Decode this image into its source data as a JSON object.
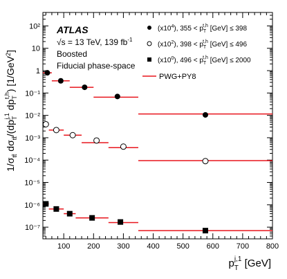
{
  "experiment": "ATLAS",
  "annotation": {
    "energy": "√s = 13 TeV, 139 fb",
    "energy_sup": "-1",
    "regime": "Boosted",
    "phase_space": "Fiducial phase-space"
  },
  "legend": {
    "s1_prefix": "(x10",
    "s1_exp": "4",
    "s1_range_a": "), 355 < p",
    "s1_range_b": " [GeV] ≤ 398",
    "s2_prefix": "(x10",
    "s2_exp": "2",
    "s2_range_a": "), 398 < p",
    "s2_range_b": " [GeV] ≤ 496",
    "s3_prefix": "(x10",
    "s3_exp": "0",
    "s3_range_a": "), 496 < p",
    "s3_range_b": " [GeV] ≤ 2000",
    "sub_T": "T",
    "sup_th": "t,h",
    "theory": "PWG+PY8"
  },
  "axes": {
    "x_label_main": "p",
    "x_label_sub": "T",
    "x_label_sup": "j,1",
    "x_label_unit": " [GeV]",
    "y_label_a": "1/σ",
    "y_label_sub1": "tt̄",
    "y_label_b": " dσ",
    "y_label_sub2": "tt̄",
    "y_label_c": "/(dp",
    "y_label_sub3": "T",
    "y_label_sup3": "j,1",
    "y_label_d": " dp",
    "y_label_sub4": "T",
    "y_label_sup4": "t,h",
    "y_label_e": ") [1/GeV",
    "y_label_sup5": "2",
    "y_label_f": "]"
  },
  "chart_data": {
    "type": "scatter",
    "x_scale": "linear",
    "y_scale": "log",
    "xlim": [
      30,
      800
    ],
    "ylim": [
      3e-08,
      400
    ],
    "x_ticks": [
      100,
      200,
      300,
      400,
      500,
      600,
      700,
      800
    ],
    "x_tick_labels": [
      "100",
      "200",
      "300",
      "400",
      "500",
      "600",
      "700",
      "800"
    ],
    "y_ticks_exp": [
      -7,
      -6,
      -5,
      -4,
      -3,
      -2,
      -1,
      0,
      1,
      2
    ],
    "y_tick_labels": [
      "10⁻⁷",
      "10⁻⁶",
      "10⁻⁵",
      "10⁻⁴",
      "10⁻³",
      "10⁻²",
      "10⁻¹",
      "1",
      "10",
      "10²"
    ],
    "grid": false,
    "legend_position": "top-right",
    "series": [
      {
        "name": "(x10⁴), 355 < pT t,h [GeV] ≤ 398",
        "marker": "filled-circle",
        "bins": [
          [
            30,
            60
          ],
          [
            60,
            120
          ],
          [
            120,
            200
          ],
          [
            200,
            350
          ],
          [
            350,
            800
          ]
        ],
        "x": [
          45,
          90,
          170,
          280,
          575
        ],
        "data": [
          0.8,
          0.35,
          0.18,
          0.07,
          0.0105
        ],
        "theory": [
          0.8,
          0.35,
          0.18,
          0.065,
          0.0115
        ]
      },
      {
        "name": "(x10²), 398 < pT t,h [GeV] ≤ 496",
        "marker": "open-circle",
        "bins": [
          [
            30,
            50
          ],
          [
            50,
            100
          ],
          [
            100,
            160
          ],
          [
            160,
            250
          ],
          [
            250,
            350
          ],
          [
            350,
            800
          ]
        ],
        "x": [
          40,
          75,
          130,
          210,
          300,
          575
        ],
        "data": [
          0.004,
          0.0022,
          0.0013,
          0.00075,
          0.0004,
          9e-05
        ],
        "theory": [
          0.004,
          0.0022,
          0.0013,
          0.0006,
          0.00036,
          9.5e-05
        ]
      },
      {
        "name": "(x10⁰), 496 < pT t,h [GeV] ≤ 2000",
        "marker": "filled-square",
        "bins": [
          [
            30,
            50
          ],
          [
            50,
            100
          ],
          [
            100,
            140
          ],
          [
            140,
            250
          ],
          [
            250,
            350
          ],
          [
            350,
            800
          ]
        ],
        "x": [
          40,
          75,
          120,
          195,
          290,
          575
        ],
        "data": [
          1.1e-06,
          6.5e-07,
          4e-07,
          2.6e-07,
          1.7e-07,
          7e-08
        ],
        "theory": [
          1.1e-06,
          6.5e-07,
          4e-07,
          2.6e-07,
          1.6e-07,
          7e-08
        ]
      }
    ],
    "theory_name": "PWG+PY8",
    "theory_color": "#e8141c"
  }
}
